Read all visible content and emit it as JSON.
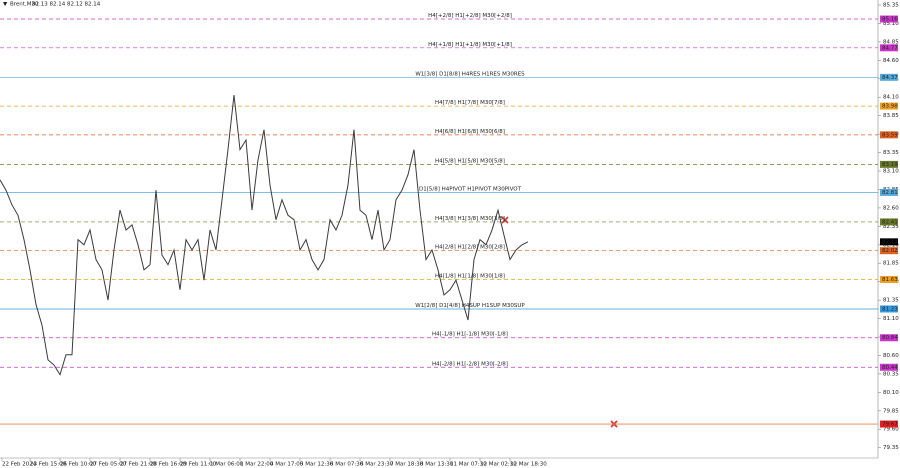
{
  "chart_data": {
    "type": "line",
    "title": "Brent,M30",
    "subtitle": "82.13 82.14 82.12 82.14",
    "x": [
      0,
      6,
      12,
      18,
      24,
      30,
      36,
      42,
      48,
      54,
      60,
      66,
      72,
      78,
      84,
      90,
      96,
      102,
      108,
      114,
      120,
      126,
      132,
      138,
      144,
      150,
      156,
      162,
      168,
      174,
      180,
      186,
      192,
      198,
      204,
      210,
      216,
      222,
      228,
      234,
      240,
      246,
      252,
      258,
      264,
      270,
      276,
      282,
      288,
      294,
      300,
      306,
      312,
      318,
      324,
      330,
      336,
      342,
      348,
      354,
      360,
      366,
      372,
      378,
      384,
      390,
      396,
      402,
      408,
      414,
      420,
      426,
      432,
      438,
      444,
      450,
      456,
      462,
      468,
      474,
      480,
      486,
      492,
      498,
      504,
      510,
      516,
      522,
      528
    ],
    "series": [
      {
        "name": "Brent,M30",
        "color": "#3a3a3a",
        "values": [
          82.98,
          82.84,
          82.64,
          82.5,
          82.17,
          81.76,
          81.29,
          81.01,
          80.54,
          80.47,
          80.34,
          80.61,
          80.61,
          82.17,
          82.1,
          82.3,
          81.9,
          81.76,
          81.35,
          82.03,
          82.57,
          82.3,
          82.37,
          82.1,
          81.76,
          81.83,
          82.84,
          81.96,
          81.83,
          82.03,
          81.49,
          82.17,
          82.03,
          82.17,
          81.62,
          82.3,
          82.03,
          82.71,
          83.39,
          84.13,
          83.39,
          83.52,
          82.57,
          83.25,
          83.66,
          82.91,
          82.44,
          82.71,
          82.5,
          82.44,
          82.03,
          82.17,
          81.9,
          81.76,
          81.9,
          82.44,
          82.3,
          82.5,
          82.91,
          83.66,
          82.57,
          82.5,
          82.17,
          82.57,
          82.03,
          82.17,
          82.71,
          82.84,
          83.05,
          83.39,
          82.57,
          81.9,
          82.03,
          81.76,
          81.42,
          81.49,
          81.62,
          81.35,
          81.08,
          81.9,
          82.17,
          82.1,
          82.3,
          82.57,
          82.23,
          81.9,
          82.03,
          82.1,
          82.14
        ]
      }
    ],
    "xlim": [
      0,
      878
    ],
    "ylim": [
      79.21,
      85.418
    ],
    "xticks": [
      {
        "value": 2,
        "label": "22 Feb 2024"
      },
      {
        "value": 30,
        "label": "23 Feb 15:00"
      },
      {
        "value": 60,
        "label": "26 Feb 10:00"
      },
      {
        "value": 90,
        "label": "27 Feb 05:00"
      },
      {
        "value": 120,
        "label": "27 Feb 21:00"
      },
      {
        "value": 150,
        "label": "28 Feb 16:00"
      },
      {
        "value": 180,
        "label": "29 Feb 11:00"
      },
      {
        "value": 210,
        "label": "1 Mar 06:00"
      },
      {
        "value": 240,
        "label": "1 Mar 22:00"
      },
      {
        "value": 270,
        "label": "4 Mar 17:00"
      },
      {
        "value": 300,
        "label": "5 Mar 12:30"
      },
      {
        "value": 330,
        "label": "6 Mar 07:30"
      },
      {
        "value": 360,
        "label": "6 Mar 23:30"
      },
      {
        "value": 390,
        "label": "7 Mar 18:30"
      },
      {
        "value": 420,
        "label": "8 Mar 13:30"
      },
      {
        "value": 450,
        "label": "11 Mar 07:30"
      },
      {
        "value": 480,
        "label": "12 Mar 02:30"
      },
      {
        "value": 510,
        "label": "12 Mar 18:30"
      }
    ],
    "yticks": [
      85.35,
      {
        "value": 85.1,
        "label": "85.10"
      },
      84.85,
      {
        "value": 84.6,
        "label": "84.60"
      },
      84.35,
      {
        "value": 84.1,
        "label": "84.10"
      },
      83.85,
      {
        "value": 83.6,
        "label": "83.60"
      },
      83.35,
      {
        "value": 83.1,
        "label": "83.10"
      },
      82.85,
      {
        "value": 82.6,
        "label": "82.60"
      },
      82.35,
      {
        "value": 82.1,
        "label": "82.10"
      },
      81.85,
      {
        "value": 81.6,
        "label": "81.60"
      },
      81.35,
      {
        "value": 81.1,
        "label": "81.10"
      },
      80.85,
      {
        "value": 80.6,
        "label": "80.60"
      },
      80.35,
      {
        "value": 80.1,
        "label": "80.10"
      },
      79.85,
      {
        "value": 79.6,
        "label": "79.60"
      },
      79.35
    ],
    "levels": [
      {
        "label": "H4[+2/8] H1[+2/8] M30[+2/8]",
        "value": 85.16,
        "color": "#cc33cc",
        "dashed": true
      },
      {
        "label": "H4[+1/8] H1[+1/8] M30[+1/8]",
        "value": 84.77,
        "color": "#cc33cc",
        "dashed": true
      },
      {
        "label": "W1[3/8] D1[8/8] H4RES H1RES M30RES",
        "value": 84.37,
        "color": "#55aadd",
        "dashed": false
      },
      {
        "label": "H4[7/8] H1[7/8] M30[7/8]",
        "value": 83.98,
        "color": "#f0a020",
        "dashed": true
      },
      {
        "label": "H4[6/8] H1[6/8] M30[6/8]",
        "value": 83.59,
        "color": "#e06020",
        "dashed": true
      },
      {
        "label": "H4[5/8] H1[5/8] M30[5/8]",
        "value": 83.19,
        "color": "#6b7a2a",
        "dashed": true
      },
      {
        "label": "D1[5/8] H4PIVOT H1PIVOT M30PIVOT",
        "value": 82.81,
        "color": "#55aadd",
        "dashed": false
      },
      {
        "label": "H4[3/8] H1[3/8] M30[3/8]",
        "value": 82.41,
        "color": "#6b7a2a",
        "dashed": true
      },
      {
        "label": "H4[2/8] H1[2/8] M30[2/8]",
        "value": 82.02,
        "color": "#e06020",
        "dashed": true
      },
      {
        "label": "H4[1/8] H1[1/8] M30[1/8]",
        "value": 81.63,
        "color": "#f0a020",
        "dashed": true
      },
      {
        "label": "W1[2/8] D1[4/8] H4SUP H1SUP M30SUP",
        "value": 81.23,
        "color": "#3399dd",
        "dashed": false
      },
      {
        "label": "H4[-1/8] H1[-1/8] M30[-1/8]",
        "value": 80.84,
        "color": "#cc33cc",
        "dashed": true
      },
      {
        "label": "H4[-2/8] H1[-2/8] M30[-2/8]",
        "value": 80.44,
        "color": "#cc33cc",
        "dashed": true
      }
    ],
    "marker_line": {
      "value": 79.67,
      "color": "#f08040"
    },
    "current_price": 82.14
  }
}
